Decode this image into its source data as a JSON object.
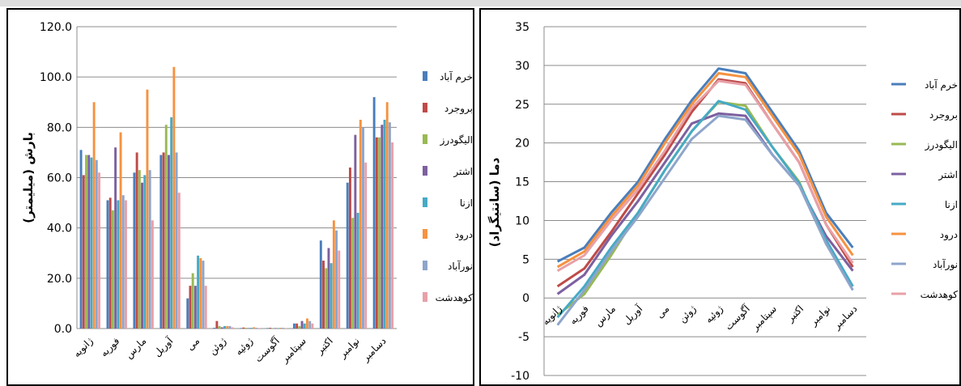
{
  "colors": {
    "خرم آباد": "#4a7ebb",
    "بروجرد": "#be4b48",
    "الیگودرز": "#98b954",
    "اشتر": "#7d60a0",
    "ازنا": "#46aac5",
    "درود": "#f69240",
    "نورآباد": "#8ea5cb",
    "کوهدشت": "#e8a0a8"
  },
  "chart_data": [
    {
      "type": "bar",
      "title": "",
      "ylabel": "بارش (میلیمتر)",
      "xlabel": "",
      "ylim": [
        0,
        120
      ],
      "yticks": [
        "0.0",
        "20.0",
        "40.0",
        "60.0",
        "80.0",
        "100.0",
        "120.0"
      ],
      "grid": true,
      "legend": "right",
      "categories": [
        "ژانویه",
        "فوریه",
        "مارس",
        "آوریل",
        "می",
        "ژوئن",
        "ژوئیه",
        "آگوست",
        "سپتامبر",
        "اکتبر",
        "نوامبر",
        "دسامبر"
      ],
      "series": [
        {
          "name": "خرم آباد",
          "values": [
            71,
            51,
            62,
            69,
            12,
            0.3,
            0.2,
            0.2,
            2,
            35,
            58,
            92
          ]
        },
        {
          "name": "بروجرد",
          "values": [
            61,
            52,
            70,
            70,
            17,
            3,
            0.4,
            0.3,
            2,
            27,
            64,
            76
          ]
        },
        {
          "name": "الیگودرز",
          "values": [
            69,
            47,
            63,
            81,
            22,
            1,
            0.3,
            0.2,
            1,
            24,
            44,
            76
          ]
        },
        {
          "name": "اشتر",
          "values": [
            69,
            72,
            58,
            69,
            17,
            0.5,
            0.2,
            0.2,
            3,
            32,
            77,
            81
          ]
        },
        {
          "name": "ازنا",
          "values": [
            68,
            51,
            61,
            84,
            29,
            1,
            0.3,
            0.2,
            2,
            26,
            46,
            83
          ]
        },
        {
          "name": "درود",
          "values": [
            90,
            78,
            95,
            104,
            28,
            1,
            0.5,
            0.3,
            4,
            43,
            83,
            90
          ]
        },
        {
          "name": "نورآباد",
          "values": [
            67,
            53,
            63,
            70,
            27,
            1,
            0.3,
            0.3,
            3,
            39,
            80,
            82
          ]
        },
        {
          "name": "کوهدشت",
          "values": [
            62,
            51,
            43,
            54,
            17,
            0.5,
            0.2,
            0.2,
            2,
            31,
            66,
            74
          ]
        }
      ]
    },
    {
      "type": "line",
      "title": "",
      "ylabel": "دما (سانتیگراد)",
      "xlabel": "",
      "ylim": [
        -10,
        35
      ],
      "yticks": [
        "-10",
        "-5",
        "0",
        "5",
        "10",
        "15",
        "20",
        "25",
        "30",
        "35"
      ],
      "grid": true,
      "legend": "right",
      "categories": [
        "ژانویه",
        "فوریه",
        "مارس",
        "آوریل",
        "می",
        "ژوئن",
        "ژوئیه",
        "آگوست",
        "سپتامبر",
        "اکتبر",
        "نوامبر",
        "دسامبر"
      ],
      "series": [
        {
          "name": "خرم آباد",
          "values": [
            4.7,
            6.5,
            11,
            15,
            20.5,
            25.5,
            29.6,
            29,
            24,
            19,
            11,
            6.5
          ]
        },
        {
          "name": "بروجرد",
          "values": [
            1.5,
            3.8,
            8.5,
            13.5,
            18.5,
            24,
            28.2,
            27.7,
            22.5,
            17.5,
            9.5,
            4
          ]
        },
        {
          "name": "الیگودرز",
          "values": [
            -2.2,
            0.5,
            5.5,
            11,
            16.5,
            21.5,
            25.3,
            24.8,
            19.5,
            15,
            7,
            1.5
          ]
        },
        {
          "name": "اشتر",
          "values": [
            0.5,
            3,
            8,
            12.5,
            17.5,
            22.5,
            23.8,
            23.5,
            18.5,
            14.5,
            8,
            3.5
          ]
        },
        {
          "name": "ازنا",
          "values": [
            -2.5,
            1.5,
            6.5,
            11,
            16.5,
            21.5,
            25.4,
            24.3,
            19.5,
            14.8,
            7.5,
            1.5
          ]
        },
        {
          "name": "درود",
          "values": [
            4,
            6,
            10.5,
            14.5,
            20,
            25,
            29,
            28.5,
            23.5,
            18.5,
            10.5,
            5.5
          ]
        },
        {
          "name": "نورآباد",
          "values": [
            -3.5,
            1,
            6,
            10.5,
            15.5,
            20.5,
            23.5,
            23,
            18.5,
            14.5,
            7,
            1
          ]
        },
        {
          "name": "کوهدشت",
          "values": [
            3.5,
            5.5,
            10,
            14,
            19,
            24.5,
            28,
            27.5,
            22.5,
            17.5,
            9.5,
            4.5
          ]
        }
      ]
    }
  ]
}
